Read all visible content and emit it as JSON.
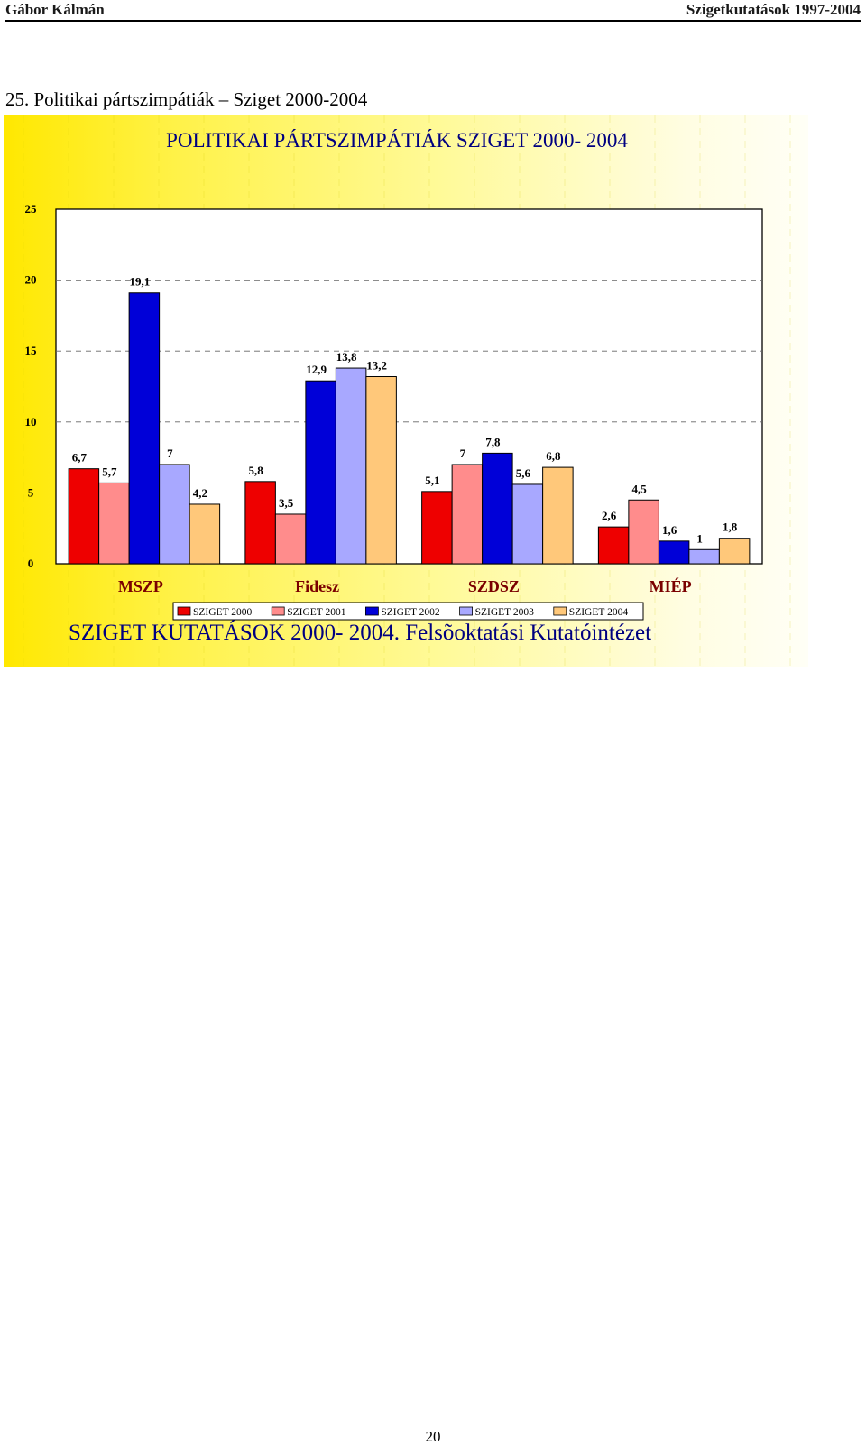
{
  "header": {
    "author": "Gábor Kálmán",
    "series_title": "Szigetkutatások 1997-2004"
  },
  "section_title": "25. Politikai pártszimpátiák – Sziget 2000-2004",
  "colors": {
    "SZIGET 2000": "#ee0000",
    "SZIGET 2001": "#ff8c8c",
    "SZIGET 2002": "#0000d8",
    "SZIGET 2003": "#a8a8ff",
    "SZIGET 2004": "#ffc87a",
    "title_text": "#000080",
    "category_text": "#7a0000",
    "footer_text": "#000080"
  },
  "chart_data": {
    "type": "bar",
    "title": "POLITIKAI PÁRTSZIMPÁTIÁK SZIGET 2000- 2004",
    "categories": [
      "MSZP",
      "Fidesz",
      "SZDSZ",
      "MIÉP"
    ],
    "series": [
      {
        "name": "SZIGET 2000",
        "values": [
          6.7,
          5.8,
          5.1,
          2.6
        ],
        "labels": [
          "6,7",
          "5,8",
          "5,1",
          "2,6"
        ]
      },
      {
        "name": "SZIGET 2001",
        "values": [
          5.7,
          3.5,
          7,
          4.5
        ],
        "labels": [
          "5,7",
          "3,5",
          "7",
          "4,5"
        ]
      },
      {
        "name": "SZIGET 2002",
        "values": [
          19.1,
          12.9,
          7.8,
          1.6
        ],
        "labels": [
          "19,1",
          "12,9",
          "7,8",
          "1,6"
        ]
      },
      {
        "name": "SZIGET 2003",
        "values": [
          7,
          13.8,
          5.6,
          1
        ],
        "labels": [
          "7",
          "13,8",
          "5,6",
          "1"
        ]
      },
      {
        "name": "SZIGET 2004",
        "values": [
          4.2,
          13.2,
          6.8,
          1.8
        ],
        "labels": [
          "4,2",
          "13,2",
          "6,8",
          "1,8"
        ]
      }
    ],
    "yticks": [
      "0",
      "5",
      "10",
      "15",
      "20",
      "25"
    ],
    "ylim": [
      0,
      25
    ],
    "grid": true,
    "legend_position": "bottom",
    "footer": "SZIGET KUTATÁSOK 2000- 2004. Felsõoktatási Kutatóintézet"
  },
  "page_number": "20"
}
